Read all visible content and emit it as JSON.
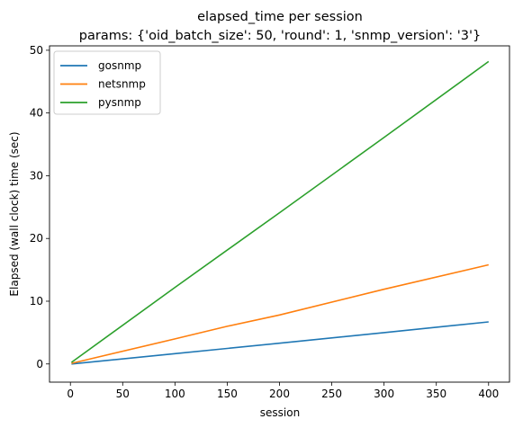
{
  "chart_data": {
    "type": "line",
    "title": "elapsed_time per session",
    "subtitle": "params: {'oid_batch_size': 50, 'round': 1, 'snmp_version': '3'}",
    "xlabel": "session",
    "ylabel": "Elapsed (wall clock) time (sec)",
    "xlim": [
      -20,
      420
    ],
    "ylim": [
      -2.9,
      50.7
    ],
    "xticks": [
      0,
      50,
      100,
      150,
      200,
      250,
      300,
      350,
      400
    ],
    "yticks": [
      0,
      10,
      20,
      30,
      40,
      50
    ],
    "grid": false,
    "legend_position": "top-left",
    "series": [
      {
        "name": "gosnmp",
        "color": "#1f77b4",
        "x": [
          1,
          100,
          200,
          300,
          400
        ],
        "y": [
          0.0,
          1.65,
          3.3,
          5.0,
          6.7
        ]
      },
      {
        "name": "netsnmp",
        "color": "#ff7f0e",
        "x": [
          1,
          100,
          150,
          200,
          300,
          400
        ],
        "y": [
          0.1,
          4.0,
          6.0,
          7.8,
          11.9,
          15.8
        ]
      },
      {
        "name": "pysnmp",
        "color": "#2ca02c",
        "x": [
          1,
          100,
          200,
          300,
          400
        ],
        "y": [
          0.25,
          12.2,
          24.1,
          36.1,
          48.2
        ]
      }
    ]
  }
}
